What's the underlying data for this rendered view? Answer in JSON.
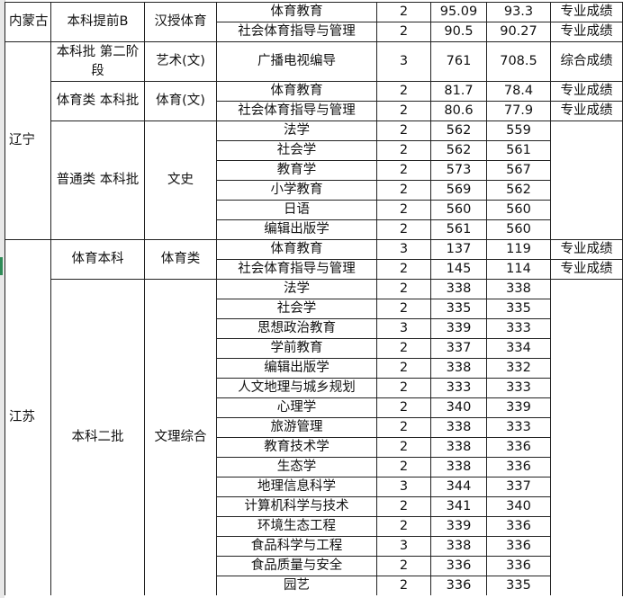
{
  "groups": [
    {
      "province": "内蒙古",
      "batches": [
        {
          "batch": "本科提前B",
          "category": "汉授体育",
          "rows": [
            {
              "major": "体育教育",
              "count": "2",
              "max": "95.09",
              "min": "93.3",
              "note": "专业成绩"
            },
            {
              "major": "社会体育指导与管理",
              "count": "2",
              "max": "90.5",
              "min": "90.27",
              "note": "专业成绩"
            }
          ]
        }
      ]
    },
    {
      "province": "辽宁",
      "batches": [
        {
          "batch": "本科批 第二阶段",
          "category": "艺术(文)",
          "rows": [
            {
              "major": "广播电视编导",
              "count": "3",
              "max": "761",
              "min": "708.5",
              "note": "综合成绩"
            }
          ]
        },
        {
          "batch": "体育类 本科批",
          "category": "体育(文)",
          "rows": [
            {
              "major": "体育教育",
              "count": "2",
              "max": "81.7",
              "min": "78.4",
              "note": "专业成绩"
            },
            {
              "major": "社会体育指导与管理",
              "count": "2",
              "max": "80.6",
              "min": "77.9",
              "note": "专业成绩"
            }
          ]
        },
        {
          "batch": "普通类 本科批",
          "category": "文史",
          "rows": [
            {
              "major": "法学",
              "count": "2",
              "max": "562",
              "min": "559",
              "note": ""
            },
            {
              "major": "社会学",
              "count": "2",
              "max": "562",
              "min": "561",
              "note": ""
            },
            {
              "major": "教育学",
              "count": "2",
              "max": "573",
              "min": "567",
              "note": ""
            },
            {
              "major": "小学教育",
              "count": "2",
              "max": "569",
              "min": "562",
              "note": ""
            },
            {
              "major": "日语",
              "count": "2",
              "max": "560",
              "min": "560",
              "note": ""
            },
            {
              "major": "编辑出版学",
              "count": "2",
              "max": "561",
              "min": "560",
              "note": ""
            }
          ]
        }
      ]
    },
    {
      "province": "江苏",
      "batches": [
        {
          "batch": "体育本科",
          "category": "体育类",
          "rows": [
            {
              "major": "体育教育",
              "count": "3",
              "max": "137",
              "min": "119",
              "note": "专业成绩"
            },
            {
              "major": "社会体育指导与管理",
              "count": "2",
              "max": "145",
              "min": "114",
              "note": "专业成绩"
            }
          ]
        },
        {
          "batch": "本科二批",
          "category": "文理综合",
          "rows": [
            {
              "major": "法学",
              "count": "2",
              "max": "338",
              "min": "338",
              "note": ""
            },
            {
              "major": "社会学",
              "count": "2",
              "max": "335",
              "min": "335",
              "note": ""
            },
            {
              "major": "思想政治教育",
              "count": "3",
              "max": "339",
              "min": "333",
              "note": ""
            },
            {
              "major": "学前教育",
              "count": "2",
              "max": "337",
              "min": "334",
              "note": ""
            },
            {
              "major": "编辑出版学",
              "count": "2",
              "max": "338",
              "min": "332",
              "note": ""
            },
            {
              "major": "人文地理与城乡规划",
              "count": "2",
              "max": "333",
              "min": "333",
              "note": ""
            },
            {
              "major": "心理学",
              "count": "2",
              "max": "340",
              "min": "339",
              "note": ""
            },
            {
              "major": "旅游管理",
              "count": "2",
              "max": "338",
              "min": "333",
              "note": ""
            },
            {
              "major": "教育技术学",
              "count": "2",
              "max": "338",
              "min": "336",
              "note": ""
            },
            {
              "major": "生态学",
              "count": "2",
              "max": "338",
              "min": "336",
              "note": ""
            },
            {
              "major": "地理信息科学",
              "count": "3",
              "max": "344",
              "min": "337",
              "note": ""
            },
            {
              "major": "计算机科学与技术",
              "count": "2",
              "max": "341",
              "min": "340",
              "note": ""
            },
            {
              "major": "环境生态工程",
              "count": "2",
              "max": "339",
              "min": "336",
              "note": ""
            },
            {
              "major": "食品科学与工程",
              "count": "3",
              "max": "338",
              "min": "336",
              "note": ""
            },
            {
              "major": "食品质量与安全",
              "count": "2",
              "max": "336",
              "min": "336",
              "note": ""
            },
            {
              "major": "园艺",
              "count": "2",
              "max": "336",
              "min": "335",
              "note": ""
            }
          ]
        }
      ]
    }
  ]
}
